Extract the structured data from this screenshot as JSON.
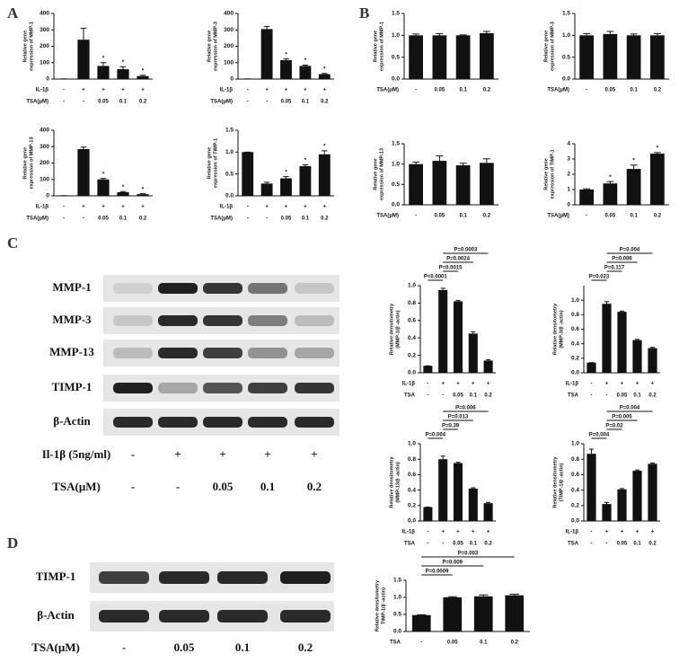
{
  "panels": [
    "A",
    "B",
    "C",
    "D"
  ],
  "blots": [
    {
      "bands": [
        "MMP-1",
        "MMP-3",
        "MMP-13",
        "TIMP-1",
        "β-Actin"
      ],
      "conditions": [
        {
          "label": "Il-1β (5ng/ml)",
          "values": [
            "-",
            "+",
            "+",
            "+",
            "+"
          ]
        },
        {
          "label": "TSA(μM)",
          "values": [
            "-",
            "-",
            "0.05",
            "0.1",
            "0.2"
          ]
        }
      ]
    },
    {
      "bands": [
        "TIMP-1",
        "β-Actin"
      ],
      "conditions": [
        {
          "label": "TSA(μM)",
          "values": [
            "-",
            "0.05",
            "0.1",
            "0.2"
          ]
        }
      ]
    }
  ],
  "chart_data": [
    {
      "type": "bar",
      "ylabel": [
        "Relative gene",
        "expression of MMP-1"
      ],
      "color": "#111111",
      "ylim": [
        0,
        400
      ],
      "yticks": [
        0,
        100,
        200,
        300,
        400
      ],
      "values": [
        1,
        240,
        80,
        60,
        18
      ],
      "errors": [
        0,
        70,
        20,
        15,
        5
      ],
      "significance": [
        null,
        null,
        "*",
        "*",
        "*"
      ],
      "category_rows": [
        {
          "label": "IL-1β",
          "values": [
            "-",
            "+",
            "+",
            "+",
            "+"
          ]
        },
        {
          "label": "TSA(μM)",
          "values": [
            "-",
            "-",
            "0.05",
            "0.1",
            "0.2"
          ]
        }
      ]
    },
    {
      "type": "bar",
      "ylabel": [
        "Relative gene",
        "expression of MMP-3"
      ],
      "color": "#111111",
      "ylim": [
        0,
        400
      ],
      "yticks": [
        0,
        100,
        200,
        300,
        400
      ],
      "values": [
        1,
        305,
        115,
        80,
        30
      ],
      "errors": [
        0,
        15,
        8,
        5,
        4
      ],
      "significance": [
        null,
        null,
        "*",
        "*",
        "*"
      ],
      "category_rows": [
        {
          "label": "IL-1β",
          "values": [
            "-",
            "+",
            "+",
            "+",
            "+"
          ]
        },
        {
          "label": "TSA(μM)",
          "values": [
            "-",
            "-",
            "0.05",
            "0.1",
            "0.2"
          ]
        }
      ]
    },
    {
      "type": "bar",
      "ylabel": [
        "Relative gene",
        "expression of MMP-13"
      ],
      "color": "#111111",
      "ylim": [
        0,
        400
      ],
      "yticks": [
        0,
        100,
        200,
        300,
        400
      ],
      "values": [
        1,
        285,
        100,
        22,
        10
      ],
      "errors": [
        0,
        12,
        6,
        4,
        3
      ],
      "significance": [
        null,
        null,
        "*",
        "*",
        "*"
      ],
      "category_rows": [
        {
          "label": "IL-1β",
          "values": [
            "-",
            "+",
            "+",
            "+",
            "+"
          ]
        },
        {
          "label": "TSA(μM)",
          "values": [
            "-",
            "-",
            "0.05",
            "0.1",
            "0.2"
          ]
        }
      ]
    },
    {
      "type": "bar",
      "ylabel": [
        "Relative gene",
        "expression of TIMP-1"
      ],
      "color": "#111111",
      "ylim": [
        0,
        1.5
      ],
      "yticks": [
        {
          "value": 0,
          "label": "0.0"
        },
        0.5,
        {
          "value": 1,
          "label": "1.0"
        },
        1.5
      ],
      "values": [
        1.0,
        0.28,
        0.4,
        0.68,
        0.95
      ],
      "errors": [
        0,
        0.03,
        0.04,
        0.03,
        0.08
      ],
      "significance": [
        null,
        null,
        "*",
        "*",
        "*"
      ],
      "category_rows": [
        {
          "label": "IL-1β",
          "values": [
            "-",
            "+",
            "+",
            "+",
            "+"
          ]
        },
        {
          "label": "TSA(μM)",
          "values": [
            "-",
            "-",
            "0.05",
            "0.1",
            "0.2"
          ]
        }
      ]
    },
    {
      "type": "bar",
      "ylabel": [
        "Relative gene",
        "expression of MMP-1"
      ],
      "color": "#111111",
      "ylim": [
        0,
        1.5
      ],
      "yticks": [
        {
          "value": 0,
          "label": "0.0"
        },
        0.5,
        {
          "value": 1,
          "label": "1.0"
        },
        1.5
      ],
      "values": [
        1.0,
        1.0,
        1.0,
        1.05
      ],
      "errors": [
        0.03,
        0.04,
        0.01,
        0.04
      ],
      "category_rows": [
        {
          "label": "TSA(μM)",
          "values": [
            "-",
            "0.05",
            "0.1",
            "0.2"
          ]
        }
      ]
    },
    {
      "type": "bar",
      "ylabel": [
        "Relative gene",
        "expression of MMP-3"
      ],
      "color": "#111111",
      "ylim": [
        0,
        1.5
      ],
      "yticks": [
        {
          "value": 0,
          "label": "0.0"
        },
        0.5,
        {
          "value": 1,
          "label": "1.0"
        },
        1.5
      ],
      "values": [
        1.0,
        1.03,
        1.0,
        1.0
      ],
      "errors": [
        0.04,
        0.06,
        0.03,
        0.04
      ],
      "category_rows": [
        {
          "label": "TSA(μM)",
          "values": [
            "-",
            "0.05",
            "0.1",
            "0.2"
          ]
        }
      ]
    },
    {
      "type": "bar",
      "ylabel": [
        "Relative gene",
        "expression of MMP-13"
      ],
      "color": "#111111",
      "ylim": [
        0,
        1.5
      ],
      "yticks": [
        {
          "value": 0,
          "label": "0.0"
        },
        0.5,
        {
          "value": 1,
          "label": "1.0"
        },
        1.5
      ],
      "values": [
        1.0,
        1.08,
        0.97,
        1.03
      ],
      "errors": [
        0.05,
        0.12,
        0.05,
        0.1
      ],
      "category_rows": [
        {
          "label": "TSA(μM)",
          "values": [
            "-",
            "0.05",
            "0.1",
            "0.2"
          ]
        }
      ]
    },
    {
      "type": "bar",
      "ylabel": [
        "Relative gene",
        "expression of TIMP-1"
      ],
      "color": "#111111",
      "ylim": [
        0,
        4
      ],
      "yticks": [
        0,
        1,
        2,
        3,
        4
      ],
      "values": [
        1.0,
        1.4,
        2.35,
        3.35
      ],
      "errors": [
        0.05,
        0.12,
        0.25,
        0.07
      ],
      "significance": [
        null,
        "*",
        "*",
        "*"
      ],
      "category_rows": [
        {
          "label": "TSA(μM)",
          "values": [
            "-",
            "0.05",
            "0.1",
            "0.2"
          ]
        }
      ]
    },
    {
      "type": "bar",
      "ylabel": [
        "Relative densitometry",
        "(MMP-1/β -actin)"
      ],
      "color": "#111111",
      "ylim": [
        0,
        1.0
      ],
      "yticks": [
        {
          "value": 0,
          "label": "0.0"
        },
        0.2,
        0.4,
        0.6,
        0.8,
        {
          "value": 1,
          "label": "1.0"
        }
      ],
      "values": [
        0.08,
        0.95,
        0.82,
        0.45,
        0.14
      ],
      "errors": [
        0,
        0.02,
        0.01,
        0.02,
        0.01
      ],
      "brackets": [
        {
          "from": 0,
          "to": 1,
          "label": "P<0.0001"
        },
        {
          "from": 1,
          "to": 2,
          "label": "P=0.0015"
        },
        {
          "from": 1,
          "to": 3,
          "label": "P=0.0024"
        },
        {
          "from": 1,
          "to": 4,
          "label": "P=0.0003"
        }
      ],
      "category_rows": [
        {
          "label": "IL-1β",
          "values": [
            "-",
            "+",
            "+",
            "+",
            "+"
          ]
        },
        {
          "label": "TSA",
          "values": [
            "-",
            "-",
            "0.05",
            "0.1",
            "0.2"
          ]
        }
      ]
    },
    {
      "type": "bar",
      "ylabel": [
        "Relative densitometry",
        "(MMP-3/β -actin)"
      ],
      "color": "#111111",
      "ylim": [
        0,
        1.2
      ],
      "yticks": [
        {
          "value": 0,
          "label": "0.0"
        },
        0.2,
        0.4,
        0.6,
        0.8,
        {
          "value": 1,
          "label": "1.0"
        }
      ],
      "values": [
        0.14,
        0.95,
        0.84,
        0.45,
        0.34
      ],
      "errors": [
        0,
        0.03,
        0.01,
        0.01,
        0.01
      ],
      "brackets": [
        {
          "from": 0,
          "to": 1,
          "label": "P=0.023"
        },
        {
          "from": 1,
          "to": 2,
          "label": "P=0.117"
        },
        {
          "from": 1,
          "to": 3,
          "label": "P=0.006"
        },
        {
          "from": 1,
          "to": 4,
          "label": "P=0.004"
        }
      ],
      "category_rows": [
        {
          "label": "IL-1β",
          "values": [
            "-",
            "+",
            "+",
            "+",
            "+"
          ]
        },
        {
          "label": "TSA",
          "values": [
            "-",
            "-",
            "0.05",
            "0.1",
            "0.2"
          ]
        }
      ]
    },
    {
      "type": "bar",
      "ylabel": [
        "Relative densitometry",
        "(MMP-13/β -actin)"
      ],
      "color": "#111111",
      "ylim": [
        0,
        1.0
      ],
      "yticks": [
        {
          "value": 0,
          "label": "0.0"
        },
        0.2,
        0.4,
        0.6,
        0.8,
        {
          "value": 1,
          "label": "1.0"
        }
      ],
      "values": [
        0.18,
        0.8,
        0.75,
        0.42,
        0.23
      ],
      "errors": [
        0,
        0.04,
        0.01,
        0.01,
        0.01
      ],
      "brackets": [
        {
          "from": 0,
          "to": 1,
          "label": "P=0.004"
        },
        {
          "from": 1,
          "to": 2,
          "label": "P=0.39"
        },
        {
          "from": 1,
          "to": 3,
          "label": "P=0.013"
        },
        {
          "from": 1,
          "to": 4,
          "label": "P=0.006"
        }
      ],
      "category_rows": [
        {
          "label": "IL-1β",
          "values": [
            "-",
            "+",
            "+",
            "+",
            "+"
          ]
        },
        {
          "label": "TSA",
          "values": [
            "-",
            "-",
            "0.05",
            "0.1",
            "0.2"
          ]
        }
      ]
    },
    {
      "type": "bar",
      "ylabel": [
        "Relative densitometry",
        "(TIMP-1/β -actin)"
      ],
      "color": "#111111",
      "ylim": [
        0,
        1.0
      ],
      "yticks": [
        {
          "value": 0,
          "label": "0.0"
        },
        0.2,
        0.4,
        0.6,
        0.8,
        {
          "value": 1,
          "label": "1.0"
        }
      ],
      "values": [
        0.87,
        0.22,
        0.41,
        0.65,
        0.74
      ],
      "errors": [
        0.06,
        0.02,
        0.01,
        0.01,
        0.01
      ],
      "brackets": [
        {
          "from": 0,
          "to": 1,
          "label": "P=0.004"
        },
        {
          "from": 1,
          "to": 2,
          "label": "P=0.02"
        },
        {
          "from": 1,
          "to": 3,
          "label": "P=0.005"
        },
        {
          "from": 1,
          "to": 4,
          "label": "P=0.004"
        }
      ],
      "category_rows": [
        {
          "label": "IL-1β",
          "values": [
            "-",
            "+",
            "+",
            "+",
            "+"
          ]
        },
        {
          "label": "TSA",
          "values": [
            "-",
            "-",
            "0.05",
            "0.1",
            "0.2"
          ]
        }
      ]
    },
    {
      "type": "bar",
      "ylabel": [
        "Relative densitometry",
        "TIMP-1/β -actin)"
      ],
      "color": "#111111",
      "ylim": [
        0,
        1.5
      ],
      "yticks": [
        {
          "value": 0,
          "label": "0.0"
        },
        0.5,
        {
          "value": 1,
          "label": "1.0"
        },
        1.5
      ],
      "values": [
        0.48,
        1.0,
        1.03,
        1.06
      ],
      "errors": [
        0.01,
        0.02,
        0.04,
        0.03
      ],
      "brackets": [
        {
          "from": 0,
          "to": 1,
          "label": "P=0.0009"
        },
        {
          "from": 0,
          "to": 2,
          "label": "P=0.009"
        },
        {
          "from": 0,
          "to": 3,
          "label": "P=0.003"
        }
      ],
      "category_rows": [
        {
          "label": "TSA",
          "values": [
            "-",
            "0.05",
            "0.1",
            "0.2"
          ]
        }
      ]
    }
  ]
}
